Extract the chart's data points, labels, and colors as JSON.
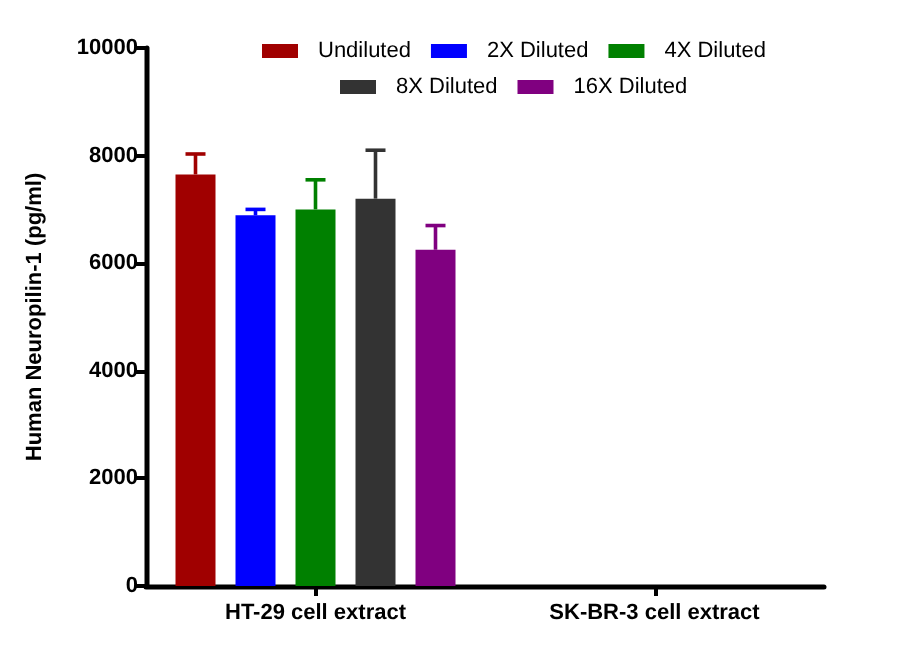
{
  "chart_data": {
    "type": "bar",
    "categories": [
      "HT-29 cell extract",
      "SK-BR-3 cell extract"
    ],
    "series": [
      {
        "name": "Undiluted",
        "color": "#a00000",
        "values": [
          7650,
          null
        ],
        "errors": [
          [
            7650,
            8030
          ],
          null
        ]
      },
      {
        "name": "2X Diluted",
        "color": "#0000ff",
        "values": [
          6890,
          null
        ],
        "errors": [
          [
            6890,
            7000
          ],
          null
        ]
      },
      {
        "name": "4X Diluted",
        "color": "#008000",
        "values": [
          7000,
          null
        ],
        "errors": [
          [
            7000,
            7550
          ],
          null
        ]
      },
      {
        "name": "8X Diluted",
        "color": "#333333",
        "values": [
          7200,
          null
        ],
        "errors": [
          [
            7200,
            8100
          ],
          null
        ]
      },
      {
        "name": "16X Diluted",
        "color": "#800080",
        "values": [
          6250,
          null
        ],
        "errors": [
          [
            6250,
            6700
          ],
          null
        ]
      }
    ],
    "ylabel": "Human Neuropilin-1 (pg/ml)",
    "ylim": [
      0,
      10000
    ],
    "yticks": [
      0,
      2000,
      4000,
      6000,
      8000,
      10000
    ],
    "legend": "top",
    "grid": false
  }
}
